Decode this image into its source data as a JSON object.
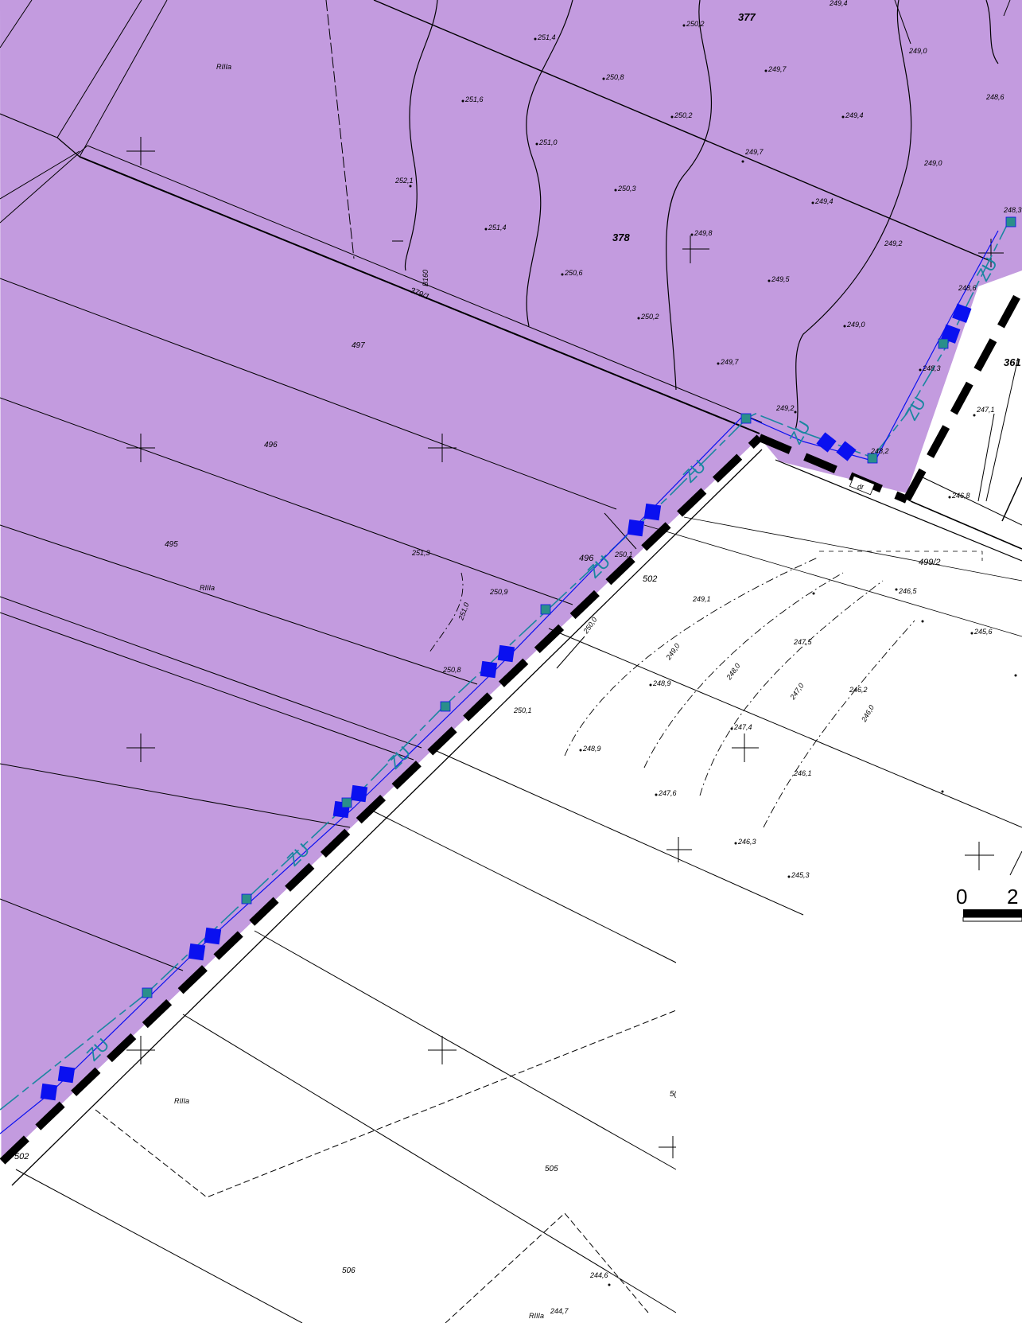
{
  "map": {
    "colors": {
      "parcel_fill": "#c39bdf",
      "utility_line": "#1a86a0",
      "marker_blue": "#0a10f0",
      "marker_teal": "#2a8f8a",
      "line": "#000000",
      "background": "#ffffff"
    },
    "parcels": {
      "p377": "377",
      "p378": "378",
      "p379_1": "379/1",
      "p497": "497",
      "p496a": "496",
      "p496b": "496",
      "p495": "495",
      "p502a": "502",
      "p502b": "502",
      "p499_2": "499/2",
      "p361": "361",
      "p505": "505",
      "p506": "506",
      "p50x": "5("
    },
    "land_class": {
      "c1": "RIIIa",
      "c2": "RIIIa",
      "c3": "RIIIa",
      "c4": "RIIIa"
    },
    "line_code": "ZU",
    "vertical_label": "B160",
    "small_label": "dr",
    "elevations": [
      "251,4",
      "250,2",
      "249,4",
      "249,7",
      "249,0",
      "248,6",
      "250,8",
      "251,6",
      "250,2",
      "249,4",
      "251,0",
      "249,7",
      "249,0",
      "252,1",
      "250,3",
      "249,4",
      "251,4",
      "249,8",
      "249,2",
      "248,3",
      "250,6",
      "249,5",
      "248,6",
      "250,2",
      "249,0",
      "249,7",
      "248,3",
      "249,2",
      "247,1",
      "248,2",
      "246,8",
      "251,3",
      "250,1",
      "250,9",
      "251,0",
      "246,5",
      "249,1",
      "245,6",
      "250,0",
      "249,0",
      "247,5",
      "250,8",
      "248,9",
      "248,0",
      "247,0",
      "246,2",
      "246,0",
      "250,1",
      "247,4",
      "248,9",
      "246,1",
      "247,6",
      "246,3",
      "245,3",
      "244,6",
      "244,7"
    ],
    "scale_bar": {
      "label_zero": "0",
      "label_next": "2"
    }
  }
}
